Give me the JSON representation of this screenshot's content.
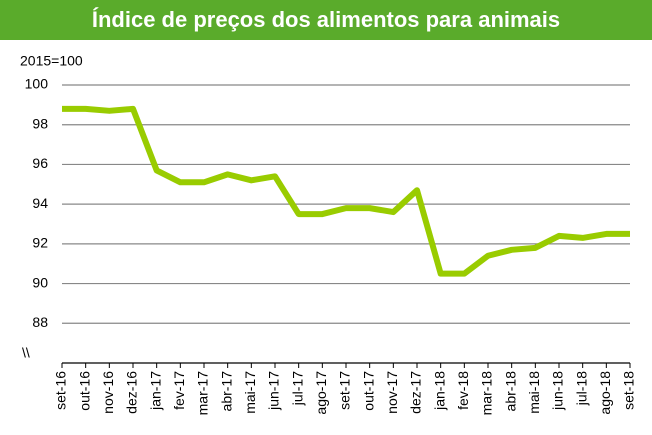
{
  "chart_data": {
    "type": "line",
    "title": "Índice de preços dos alimentos para animais",
    "subtitle": "2015=100",
    "annotation": "\\\\",
    "categories": [
      "set-16",
      "out-16",
      "nov-16",
      "dez-16",
      "jan-17",
      "fev-17",
      "mar-17",
      "abr-17",
      "mai-17",
      "jun-17",
      "jul-17",
      "ago-17",
      "set-17",
      "out-17",
      "nov-17",
      "dez-17",
      "jan-18",
      "fev-18",
      "mar-18",
      "abr-18",
      "mai-18",
      "jun-18",
      "jul-18",
      "ago-18",
      "set-18"
    ],
    "series": [
      {
        "color": "#99cc00",
        "values": [
          98.8,
          98.8,
          98.7,
          98.8,
          95.7,
          95.1,
          95.1,
          95.5,
          95.2,
          95.4,
          93.5,
          93.5,
          93.8,
          93.8,
          93.6,
          94.7,
          90.5,
          90.5,
          91.4,
          91.7,
          91.8,
          92.4,
          92.3,
          92.5,
          92.5
        ]
      }
    ],
    "ylim": [
      86,
      100
    ],
    "yticks": [
      88,
      90,
      92,
      94,
      96,
      98,
      100
    ],
    "grid": true
  }
}
